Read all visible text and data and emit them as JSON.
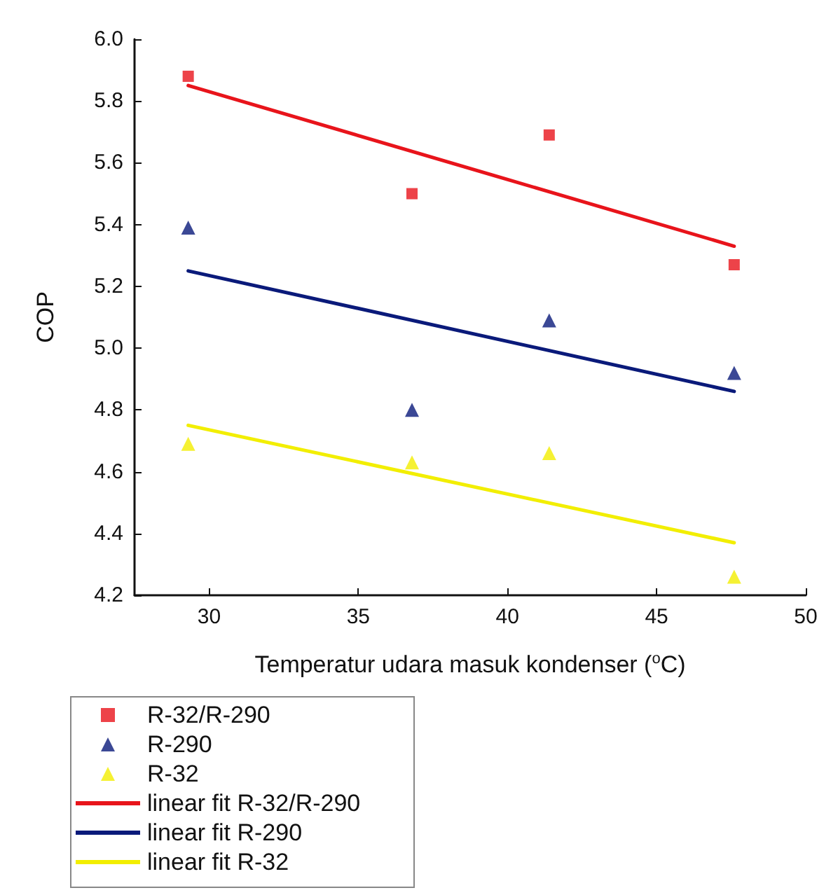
{
  "chart_data": {
    "type": "scatter",
    "xlabel": "Temperatur udara masuk kondenser ($^{o}$C)",
    "ylabel": "COP",
    "xlim": [
      27.5,
      50
    ],
    "xticks": [
      30,
      35,
      40,
      45,
      50
    ],
    "ylim": [
      4.2,
      6.0
    ],
    "yticks": [
      4.2,
      4.4,
      4.6,
      4.8,
      {
        "value": 5,
        "label": "5.0"
      },
      5.2,
      5.4,
      5.6,
      5.8,
      {
        "value": 6,
        "label": "6.0"
      }
    ],
    "grid": false,
    "legend": "bottom",
    "series": [
      {
        "name": "R-32/R-290",
        "marker": "square",
        "color": "#e8141b",
        "x": [
          29.3,
          36.8,
          41.4,
          47.6
        ],
        "values": [
          5.88,
          5.5,
          5.69,
          5.27
        ]
      },
      {
        "name": "R-290",
        "marker": "triangle",
        "color": "#0a1a7a",
        "x": [
          29.3,
          36.8,
          41.4,
          47.6
        ],
        "values": [
          5.39,
          4.8,
          5.09,
          4.92
        ]
      },
      {
        "name": "R-32",
        "marker": "triangle",
        "color": "#f2ee00",
        "x": [
          29.3,
          36.8,
          41.4,
          47.6
        ],
        "values": [
          4.69,
          4.63,
          4.66,
          4.26
        ]
      },
      {
        "name": "linear fit R-32/R-290",
        "type": "line",
        "marker": "none",
        "color": "#e8141b",
        "x": [
          29.3,
          47.6
        ],
        "values": [
          5.85,
          5.33
        ]
      },
      {
        "name": "linear fit R-290",
        "type": "line",
        "marker": "none",
        "color": "#0a1a7a",
        "x": [
          29.3,
          47.6
        ],
        "values": [
          5.25,
          4.86
        ]
      },
      {
        "name": "linear fit R-32",
        "type": "line",
        "marker": "none",
        "color": "#f2ee00",
        "x": [
          29.3,
          47.6
        ],
        "values": [
          4.75,
          4.37
        ]
      }
    ]
  }
}
